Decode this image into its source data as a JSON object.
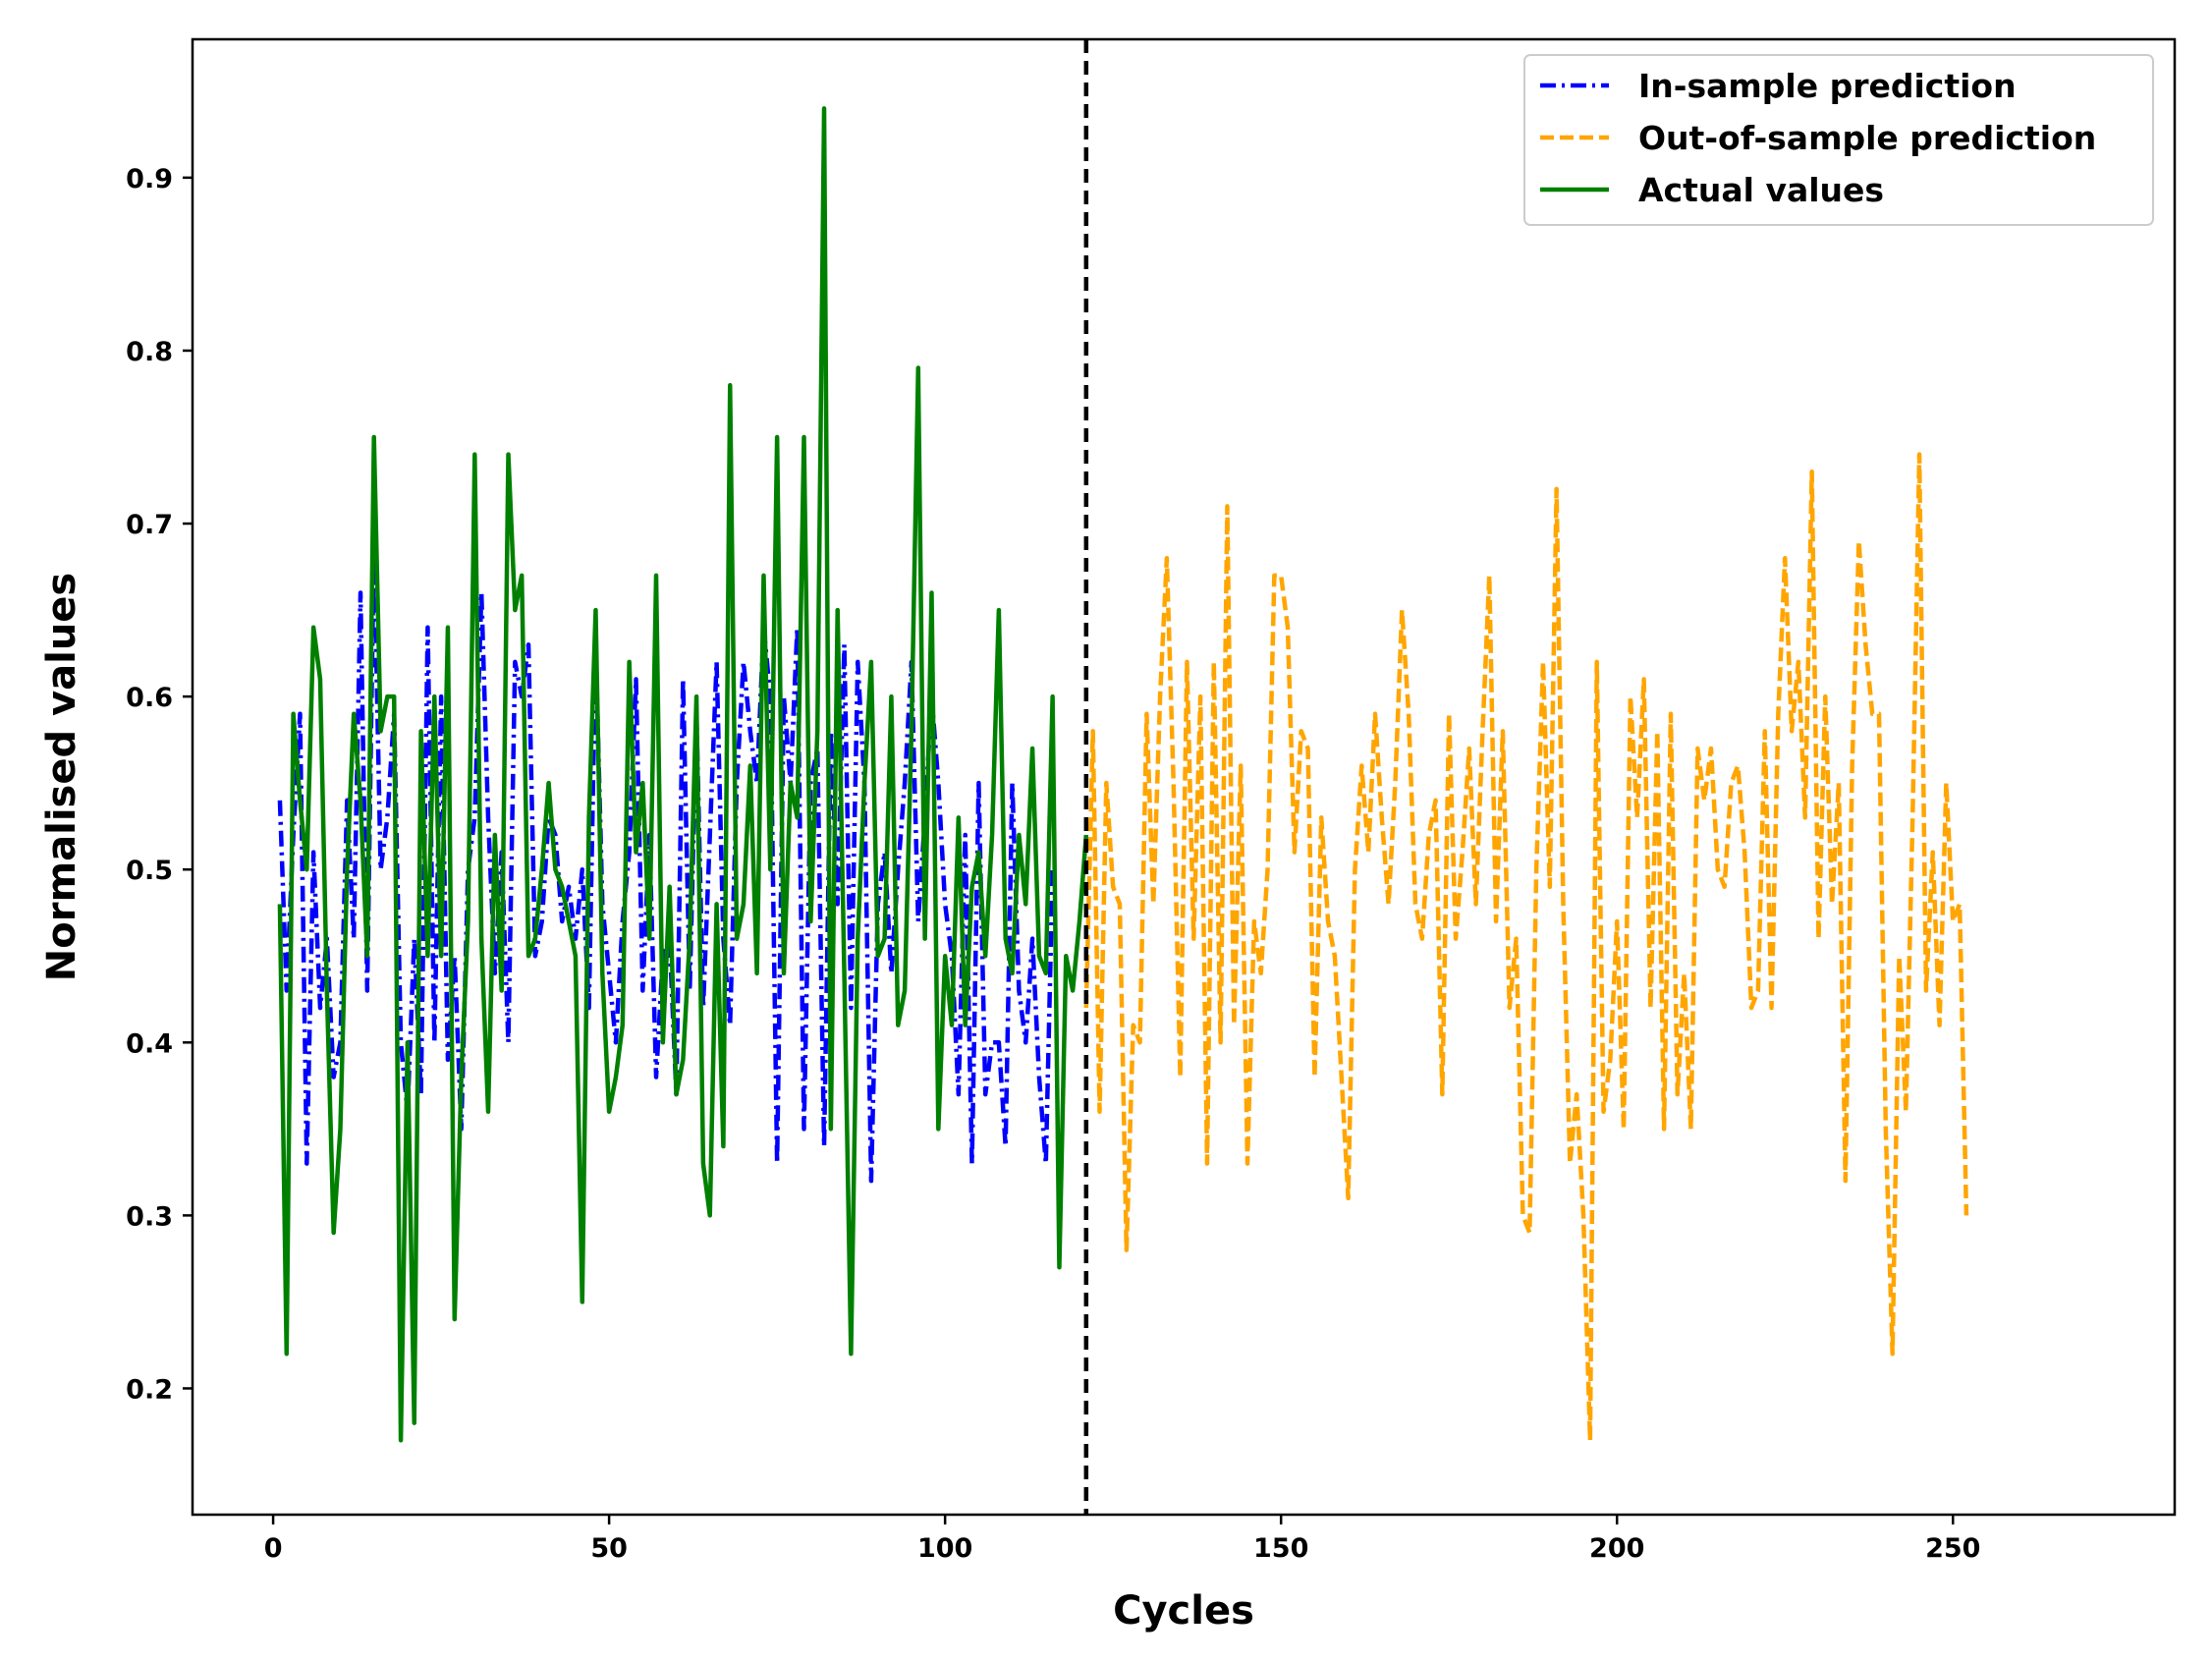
{
  "chart_data": {
    "type": "line",
    "title": "",
    "xlabel": "Cycles",
    "ylabel": "Normalised values",
    "xlim": [
      -12,
      283
    ],
    "ylim": [
      0.127,
      0.98
    ],
    "xticks": [
      0,
      50,
      100,
      150,
      200,
      250
    ],
    "xtick_labels": [
      "0",
      "50",
      "100",
      "150",
      "200",
      "250"
    ],
    "yticks": [
      0.2,
      0.3,
      0.4,
      0.5,
      0.6,
      0.7,
      0.8,
      0.9
    ],
    "ytick_labels": [
      "0.2",
      "0.3",
      "0.4",
      "0.5",
      "0.6",
      "0.7",
      "0.8",
      "0.9"
    ],
    "legend_position": "top-right",
    "split_line": {
      "x": 121,
      "style": "dashed",
      "color": "#000000"
    },
    "series": [
      {
        "name": "In-sample prediction",
        "color": "#0000ff",
        "style": "dashdot",
        "x_start": 1,
        "values": [
          0.54,
          0.43,
          0.52,
          0.59,
          0.33,
          0.51,
          0.42,
          0.46,
          0.38,
          0.4,
          0.54,
          0.46,
          0.66,
          0.43,
          0.69,
          0.5,
          0.53,
          0.59,
          0.4,
          0.36,
          0.46,
          0.37,
          0.64,
          0.4,
          0.6,
          0.39,
          0.45,
          0.35,
          0.5,
          0.53,
          0.66,
          0.53,
          0.44,
          0.51,
          0.4,
          0.62,
          0.6,
          0.63,
          0.45,
          0.47,
          0.53,
          0.52,
          0.47,
          0.49,
          0.46,
          0.5,
          0.42,
          0.63,
          0.48,
          0.44,
          0.4,
          0.47,
          0.51,
          0.61,
          0.43,
          0.52,
          0.38,
          0.45,
          0.46,
          0.37,
          0.61,
          0.43,
          0.59,
          0.42,
          0.52,
          0.62,
          0.46,
          0.41,
          0.55,
          0.62,
          0.58,
          0.55,
          0.64,
          0.6,
          0.33,
          0.6,
          0.55,
          0.64,
          0.35,
          0.55,
          0.57,
          0.34,
          0.58,
          0.48,
          0.63,
          0.42,
          0.62,
          0.55,
          0.32,
          0.48,
          0.51,
          0.44,
          0.5,
          0.55,
          0.62,
          0.47,
          0.53,
          0.6,
          0.55,
          0.48,
          0.45,
          0.37,
          0.52,
          0.33,
          0.55,
          0.37,
          0.4,
          0.4,
          0.34,
          0.55,
          0.43,
          0.4,
          0.46,
          0.38,
          0.33,
          0.5
        ],
        "note": "approximate values read from the plot"
      },
      {
        "name": "Out-of-sample prediction",
        "color": "#ffa500",
        "style": "dashed",
        "x_start": 121,
        "values": [
          0.42,
          0.58,
          0.36,
          0.55,
          0.49,
          0.48,
          0.28,
          0.41,
          0.4,
          0.59,
          0.48,
          0.6,
          0.68,
          0.55,
          0.38,
          0.62,
          0.46,
          0.6,
          0.33,
          0.62,
          0.4,
          0.71,
          0.41,
          0.56,
          0.33,
          0.47,
          0.44,
          0.5,
          0.67,
          0.67,
          0.64,
          0.51,
          0.58,
          0.57,
          0.38,
          0.53,
          0.47,
          0.45,
          0.38,
          0.31,
          0.5,
          0.56,
          0.51,
          0.59,
          0.53,
          0.48,
          0.55,
          0.65,
          0.59,
          0.48,
          0.46,
          0.52,
          0.54,
          0.37,
          0.59,
          0.46,
          0.51,
          0.57,
          0.48,
          0.58,
          0.67,
          0.47,
          0.58,
          0.42,
          0.46,
          0.3,
          0.29,
          0.5,
          0.62,
          0.49,
          0.72,
          0.48,
          0.33,
          0.37,
          0.3,
          0.17,
          0.62,
          0.36,
          0.39,
          0.47,
          0.35,
          0.6,
          0.53,
          0.61,
          0.42,
          0.58,
          0.35,
          0.59,
          0.37,
          0.44,
          0.35,
          0.57,
          0.54,
          0.57,
          0.5,
          0.49,
          0.55,
          0.56,
          0.51,
          0.42,
          0.43,
          0.58,
          0.42,
          0.59,
          0.68,
          0.58,
          0.62,
          0.53,
          0.73,
          0.46,
          0.6,
          0.48,
          0.55,
          0.32,
          0.56,
          0.69,
          0.63,
          0.59,
          0.59,
          0.35,
          0.22,
          0.45,
          0.36,
          0.53,
          0.74,
          0.43,
          0.51,
          0.41,
          0.55,
          0.47,
          0.48,
          0.3
        ]
      },
      {
        "name": "Actual values",
        "color": "#008000",
        "style": "solid",
        "x_start": 1,
        "values": [
          0.48,
          0.22,
          0.59,
          0.54,
          0.5,
          0.64,
          0.61,
          0.43,
          0.29,
          0.35,
          0.5,
          0.59,
          0.54,
          0.45,
          0.75,
          0.58,
          0.6,
          0.6,
          0.17,
          0.4,
          0.18,
          0.58,
          0.45,
          0.6,
          0.45,
          0.64,
          0.24,
          0.38,
          0.47,
          0.74,
          0.46,
          0.36,
          0.52,
          0.43,
          0.74,
          0.65,
          0.67,
          0.45,
          0.46,
          0.5,
          0.55,
          0.5,
          0.49,
          0.47,
          0.45,
          0.25,
          0.53,
          0.65,
          0.44,
          0.36,
          0.38,
          0.41,
          0.62,
          0.51,
          0.55,
          0.46,
          0.67,
          0.4,
          0.49,
          0.37,
          0.39,
          0.46,
          0.6,
          0.33,
          0.3,
          0.48,
          0.34,
          0.78,
          0.46,
          0.48,
          0.56,
          0.44,
          0.67,
          0.5,
          0.75,
          0.44,
          0.55,
          0.53,
          0.75,
          0.47,
          0.58,
          0.94,
          0.35,
          0.65,
          0.44,
          0.22,
          0.46,
          0.55,
          0.62,
          0.45,
          0.46,
          0.6,
          0.41,
          0.43,
          0.58,
          0.79,
          0.46,
          0.66,
          0.35,
          0.45,
          0.41,
          0.53,
          0.41,
          0.49,
          0.51,
          0.45,
          0.52,
          0.65,
          0.46,
          0.44,
          0.52,
          0.48,
          0.57,
          0.45,
          0.44,
          0.6,
          0.27,
          0.45,
          0.43,
          0.47,
          0.52
        ]
      }
    ]
  }
}
